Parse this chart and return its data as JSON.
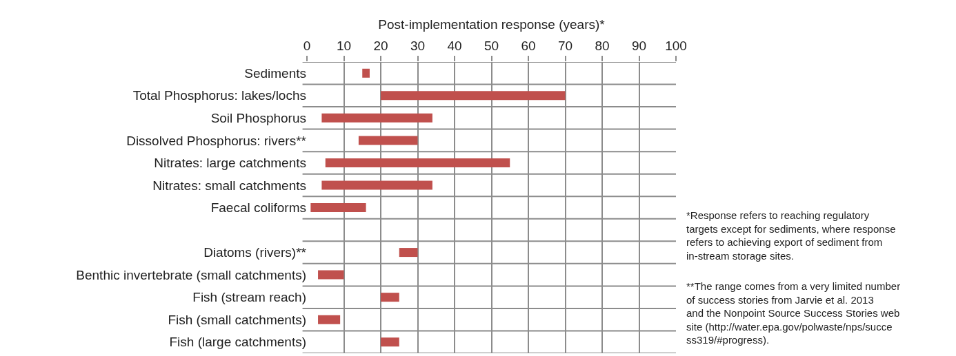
{
  "chart_data": {
    "type": "bar",
    "orientation": "horizontal",
    "xlabel": "Post-implementation response (years)*",
    "categories": [
      "Sediments",
      "Total Phosphorus: lakes/lochs",
      "Soil Phosphorus",
      "Dissolved Phosphorus: rivers**",
      "Nitrates: large catchments",
      "Nitrates: small catchments",
      "Faecal coliforms",
      null,
      "Diatoms (rivers)**",
      "Benthic invertebrate (small catchments)",
      "Fish (stream reach)",
      "Fish (small catchments)",
      "Fish (large catchments)"
    ],
    "base": [
      15,
      20,
      4,
      14,
      5,
      4,
      1,
      null,
      25,
      3,
      20,
      3,
      20
    ],
    "values": [
      2,
      50,
      30,
      16,
      50,
      30,
      15,
      null,
      5,
      7,
      5,
      6,
      5
    ],
    "color": "#c0504d",
    "xlim": [
      0,
      100
    ],
    "xticks": [
      0,
      10,
      20,
      30,
      40,
      50,
      60,
      70,
      80,
      90,
      100
    ],
    "grid": true,
    "annotations": [
      "*Response refers to reaching regulatory targets except for sediments, where response refers to achieving export of sediment from in-stream storage sites.",
      "**The range comes from a very limited number of success stories from Jarvie et al. 2013 and the Nonpoint Source Success Stories web site (http://water.epa.gov/polwaste/nps/success319/#progress)."
    ]
  }
}
